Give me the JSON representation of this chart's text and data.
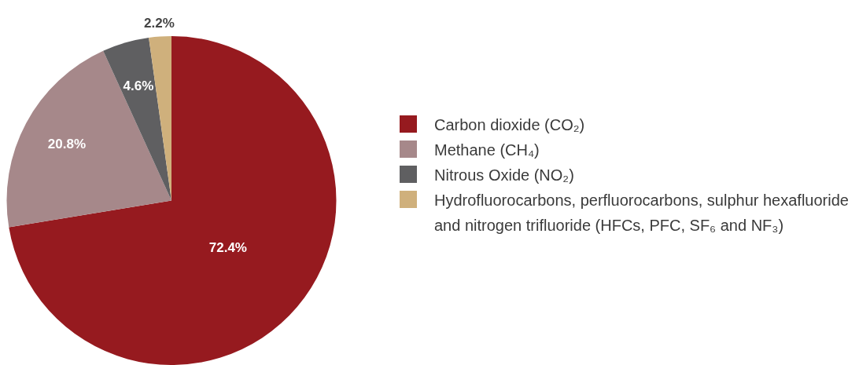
{
  "chart_data": {
    "type": "pie",
    "categories": [
      "Carbon dioxide (CO₂)",
      "Methane (CH₄)",
      "Nitrous Oxide (NO₂)",
      "Hydrofluorocarbons, perfluorocarbons, sulphur hexafluoride and nitrogen trifluoride (HFCs, PFC, SF₆ and NF₃)"
    ],
    "values": [
      72.4,
      20.8,
      4.6,
      2.2
    ],
    "colors": [
      "#961a1f",
      "#a6888a",
      "#5f5f61",
      "#cfb07c"
    ],
    "value_labels": [
      "72.4%",
      "20.8%",
      "4.6%",
      "2.2%"
    ],
    "legend": "right"
  }
}
